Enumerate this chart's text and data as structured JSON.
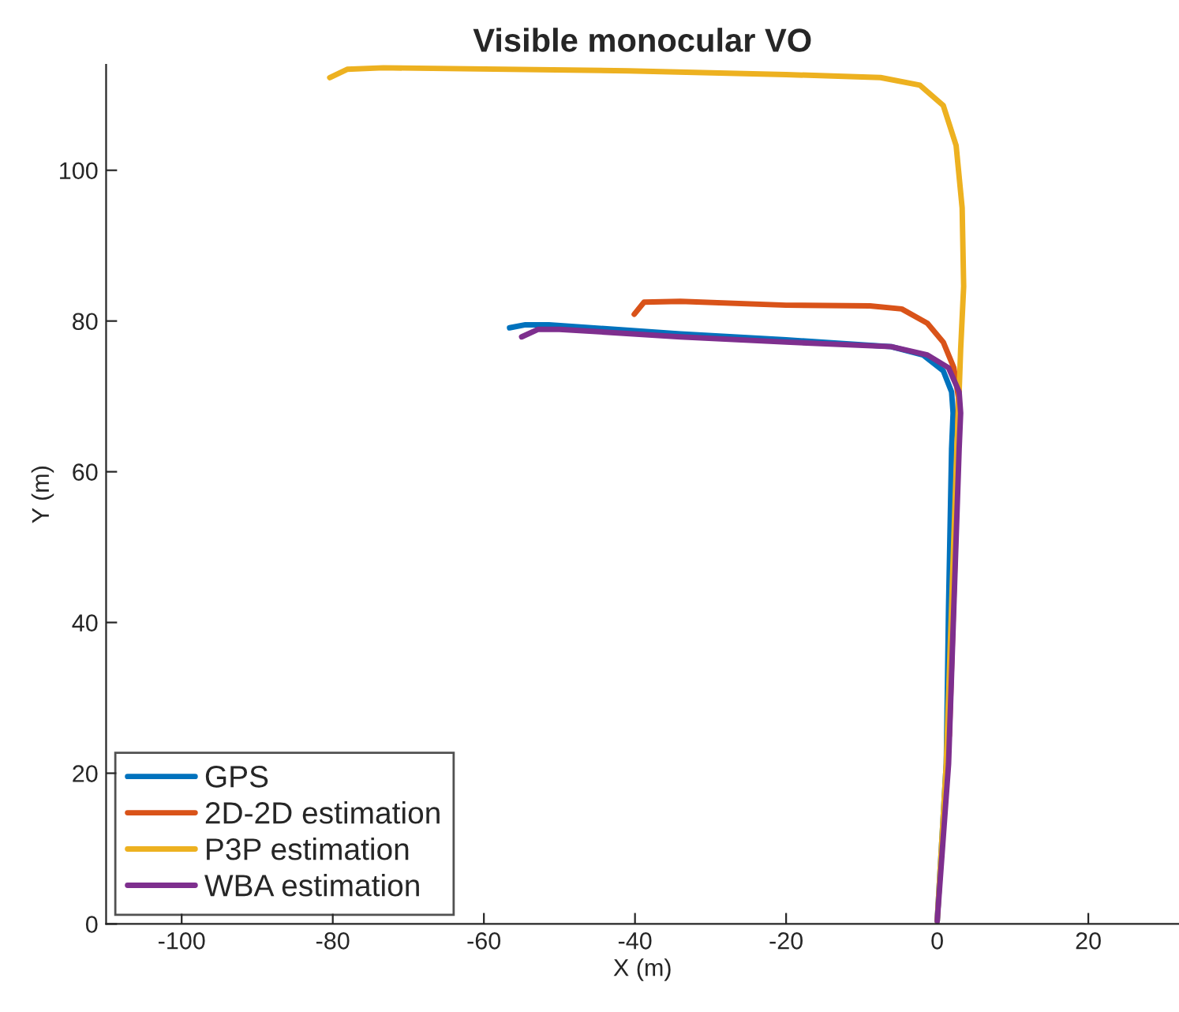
{
  "chart_data": {
    "type": "line",
    "title": "Visible monocular VO",
    "xlabel": "X (m)",
    "ylabel": "Y (m)",
    "xlim": [
      -110,
      32
    ],
    "ylim": [
      0,
      114
    ],
    "xticks": [
      -100,
      -80,
      -60,
      -40,
      -20,
      0,
      20
    ],
    "yticks": [
      0,
      20,
      40,
      60,
      80,
      100
    ],
    "grid": false,
    "legend": "bottom left",
    "marker": "none",
    "line_style": "solid",
    "series": [
      {
        "name": "GPS",
        "color": "#0072bd",
        "x": [
          -56.6,
          -54.5,
          -51.4,
          -34,
          -20,
          -6.1,
          -1.9,
          0.8,
          1.9,
          2.1,
          1.9,
          1.5,
          1.2,
          0
        ],
        "values": [
          79.1,
          79.5,
          79.5,
          78.3,
          77.5,
          76.6,
          75.5,
          73.4,
          70.6,
          67.8,
          63,
          42.1,
          21.3,
          0.4
        ]
      },
      {
        "name": "2D-2D estimation",
        "color": "#d95319",
        "x": [
          -40.1,
          -38.8,
          -34,
          -20,
          -8.9,
          -4.7,
          -1.3,
          0.8,
          2.2,
          2.8,
          2.4,
          1.6
        ],
        "values": [
          80.9,
          82.5,
          82.6,
          82.1,
          82,
          81.6,
          79.7,
          77.2,
          73.8,
          69.9,
          50,
          25
        ]
      },
      {
        "name": "P3P estimation",
        "color": "#edb120",
        "x": [
          -80.4,
          -78.1,
          -73.3,
          -40.9,
          -20,
          -7.5,
          -2.3,
          0.8,
          2.5,
          3.3,
          3.5,
          3.1,
          2.9,
          2.6,
          1.9,
          1.2,
          0
        ],
        "values": [
          112.3,
          113.4,
          113.6,
          113.2,
          112.7,
          112.3,
          111.3,
          108.6,
          103.3,
          95,
          84.6,
          76.2,
          70.6,
          63,
          42.2,
          21.3,
          0.4
        ]
      },
      {
        "name": "WBA estimation",
        "color": "#7e2f8e",
        "x": [
          -55,
          -52.8,
          -50,
          -34,
          -20,
          -6.1,
          -1.3,
          1.5,
          2.9,
          3.1,
          2.9,
          2.2,
          1.5,
          0
        ],
        "values": [
          77.9,
          78.9,
          78.9,
          77.9,
          77.2,
          76.6,
          75.5,
          73.8,
          70.6,
          67.8,
          63,
          42.1,
          21.2,
          0.4
        ]
      }
    ]
  }
}
